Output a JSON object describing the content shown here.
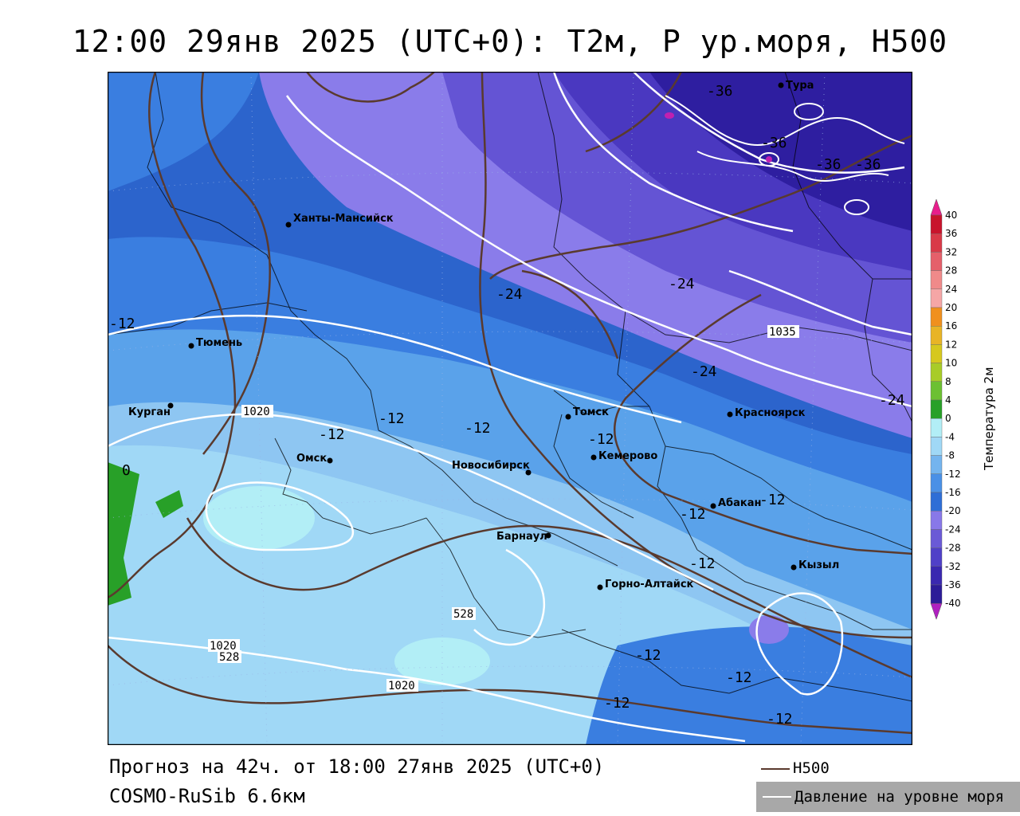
{
  "title": "12:00 29янв 2025 (UTC+0): T2м, P ур.моря, H500",
  "footer": {
    "forecast": "Прогноз на 42ч. от 18:00 27янв 2025 (UTC+0)",
    "model": "COSMO-RuSib 6.6км"
  },
  "legend": {
    "h500_label": "H500",
    "h500_color": "#5a3a2e",
    "pressure_label": "Давление на уровне моря",
    "pressure_color": "#ffffff"
  },
  "colorbar": {
    "title": "Температура 2м",
    "ticks": [
      "40",
      "36",
      "32",
      "28",
      "24",
      "20",
      "16",
      "12",
      "10",
      "8",
      "4",
      "0",
      "-4",
      "-8",
      "-12",
      "-16",
      "-20",
      "-24",
      "-28",
      "-32",
      "-36",
      "-40"
    ],
    "colors": [
      "#c8142c",
      "#d93a48",
      "#e5606a",
      "#f08a8a",
      "#f5a6a6",
      "#f0901e",
      "#e8b426",
      "#d6c81e",
      "#a8cc28",
      "#6cc032",
      "#28a028",
      "#b2eef6",
      "#a0d8f6",
      "#74b4ee",
      "#4a90e6",
      "#2e6ed6",
      "#8878e8",
      "#6a5ad6",
      "#5040c8",
      "#3a28b0",
      "#2c1c98"
    ]
  },
  "cities": [
    {
      "name": "Тура"
    },
    {
      "name": "Ханты-Мансийск"
    },
    {
      "name": "Тюмень"
    },
    {
      "name": "Курган"
    },
    {
      "name": "Омск"
    },
    {
      "name": "Томск"
    },
    {
      "name": "Кемерово"
    },
    {
      "name": "Новосибирск"
    },
    {
      "name": "Красноярск"
    },
    {
      "name": "Абакан"
    },
    {
      "name": "Барнаул"
    },
    {
      "name": "Горно-Алтайск"
    },
    {
      "name": "Кызыл"
    }
  ],
  "contour_labels": {
    "isotherms": [
      "-36",
      "-36",
      "-36",
      "-36",
      "-24",
      "-24",
      "-24",
      "-24",
      "-12",
      "-12",
      "-12",
      "-12",
      "-12",
      "-12",
      "-12",
      "-12",
      "-12",
      "-12",
      "-12",
      "-12",
      "0"
    ],
    "isobars": [
      "1035",
      "1020",
      "1020",
      "1020"
    ],
    "h500": [
      "528",
      "528"
    ]
  }
}
